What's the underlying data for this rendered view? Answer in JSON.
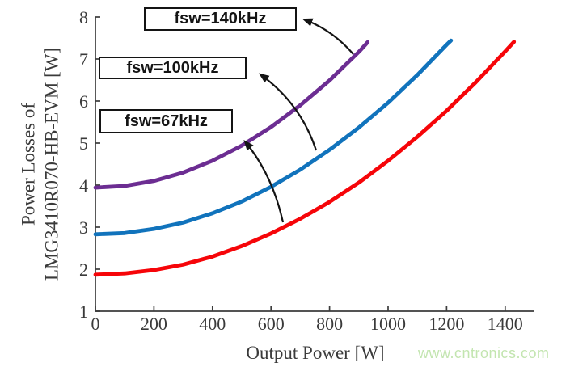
{
  "watermark": {
    "text": "www.cntronics.com",
    "color": "#c3e5b0"
  },
  "chart_data": {
    "type": "line",
    "title": "",
    "xlabel": "Output Power [W]",
    "ylabel_line1": "Power Losses of",
    "ylabel_line2": "LMG3410R070-HB-EVM [W]",
    "xlim": [
      0,
      1500
    ],
    "ylim": [
      1,
      8
    ],
    "x_ticks": [
      0,
      200,
      400,
      600,
      800,
      1000,
      1200,
      1400
    ],
    "y_ticks": [
      1,
      2,
      3,
      4,
      5,
      6,
      7,
      8
    ],
    "grid": false,
    "legend_position": "none",
    "axis_color": "#3c3c3c",
    "tick_label_color": "#3a3a3a",
    "annotation_color": "#141414",
    "series": [
      {
        "name": "fsw=67kHz",
        "color": "#f60509",
        "x": [
          0,
          100,
          200,
          300,
          400,
          500,
          600,
          700,
          800,
          900,
          1000,
          1100,
          1200,
          1300,
          1400,
          1430
        ],
        "y": [
          1.87,
          1.9,
          1.98,
          2.11,
          2.3,
          2.55,
          2.85,
          3.2,
          3.6,
          4.06,
          4.58,
          5.15,
          5.77,
          6.45,
          7.18,
          7.41
        ]
      },
      {
        "name": "fsw=100kHz",
        "color": "#1173bc",
        "x": [
          0,
          100,
          200,
          300,
          400,
          500,
          600,
          700,
          800,
          900,
          1000,
          1100,
          1200,
          1215
        ],
        "y": [
          2.83,
          2.86,
          2.96,
          3.11,
          3.33,
          3.61,
          3.96,
          4.37,
          4.84,
          5.37,
          5.96,
          6.62,
          7.34,
          7.44
        ]
      },
      {
        "name": "fsw=140kHz",
        "color": "#6c2d92",
        "x": [
          0,
          100,
          200,
          300,
          400,
          500,
          600,
          700,
          800,
          900,
          930
        ],
        "y": [
          3.94,
          3.98,
          4.1,
          4.3,
          4.58,
          4.94,
          5.38,
          5.9,
          6.49,
          7.17,
          7.4
        ]
      }
    ],
    "annotations": [
      {
        "label": "fsw=140kHz",
        "box": {
          "x": 178,
          "y": 9,
          "w": 189,
          "h": 29
        },
        "arrow": {
          "tail": [
            437,
            67
          ],
          "ctrl": [
            411,
            37
          ],
          "head": [
            376,
            24
          ]
        }
      },
      {
        "label": "fsw=100kHz",
        "box": {
          "x": 122,
          "y": 70,
          "w": 183,
          "h": 28
        },
        "arrow": {
          "tail": [
            391,
            186
          ],
          "ctrl": [
            372,
            128
          ],
          "head": [
            322,
            92
          ]
        }
      },
      {
        "label": "fsw=67kHz",
        "box": {
          "x": 123,
          "y": 135,
          "w": 165,
          "h": 30
        },
        "arrow": {
          "tail": [
            350,
            275
          ],
          "ctrl": [
            337,
            216
          ],
          "head": [
            303,
            175
          ]
        }
      }
    ]
  }
}
